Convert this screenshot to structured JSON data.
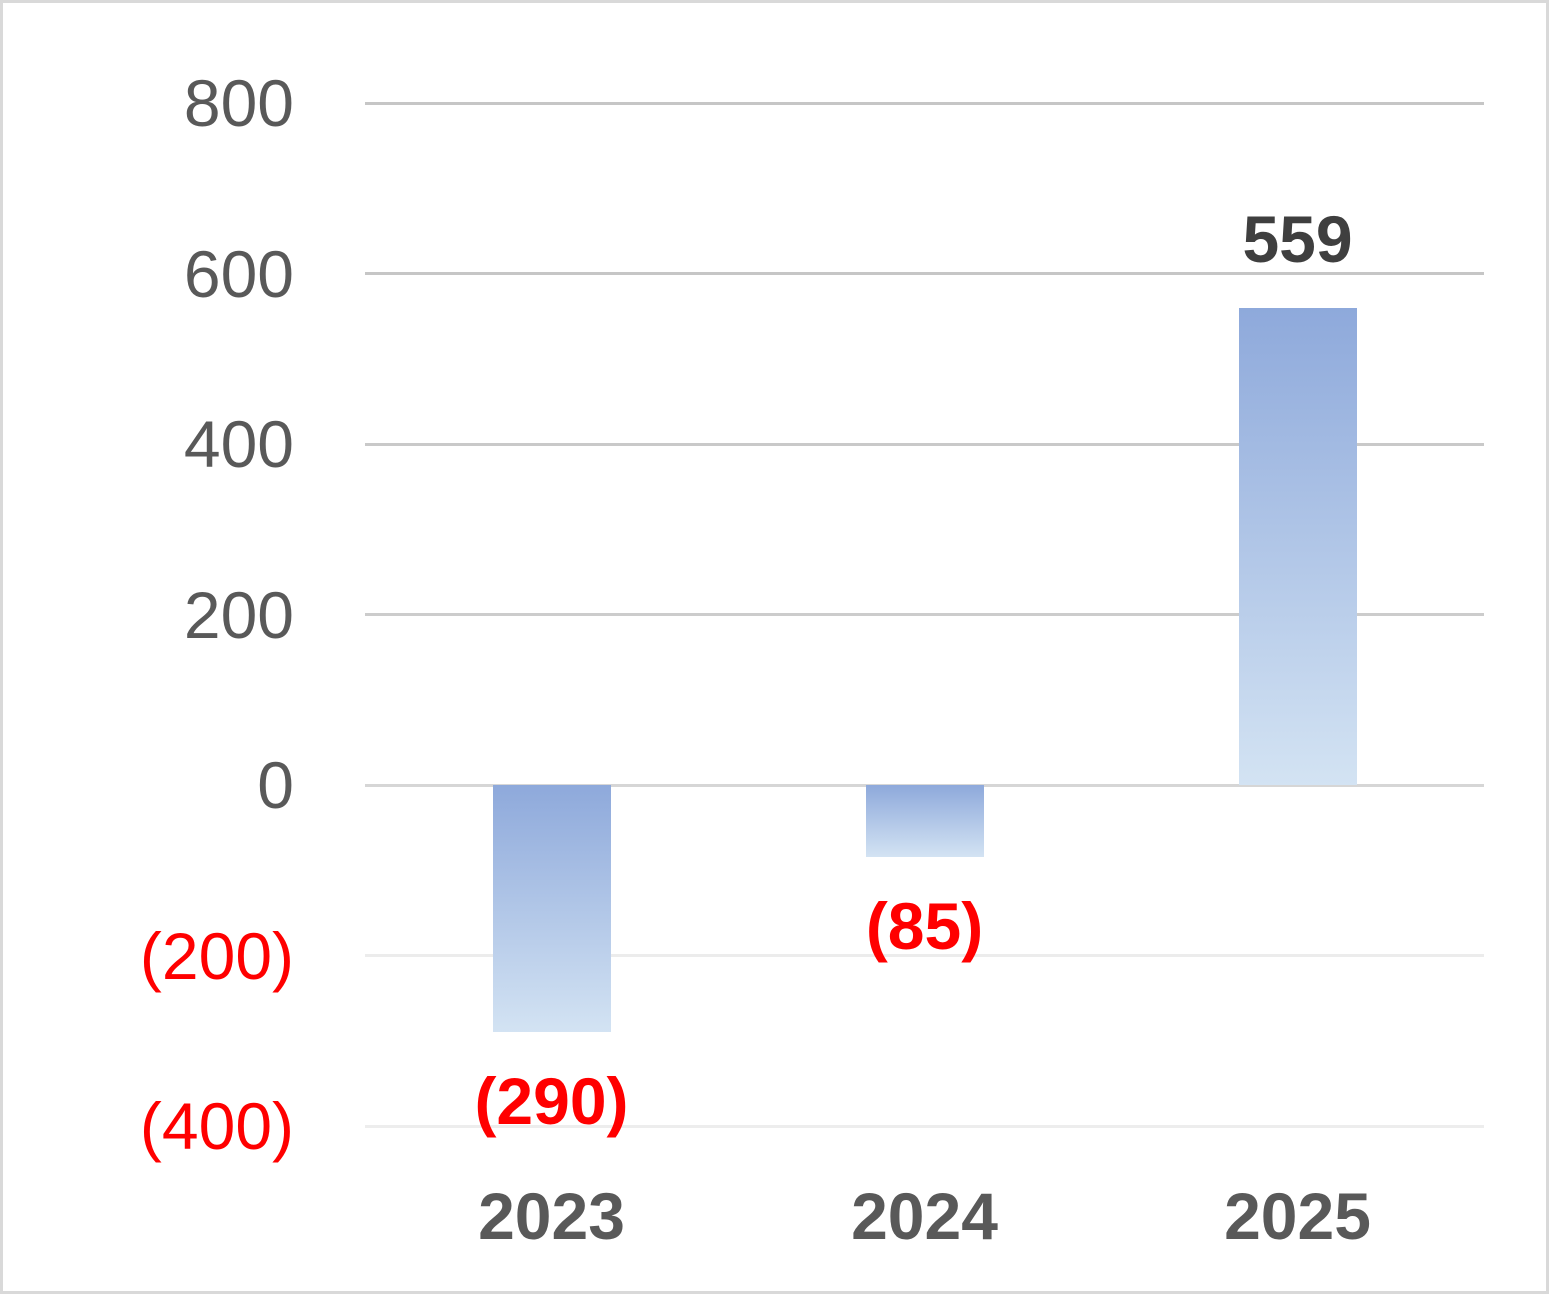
{
  "chart_data": {
    "type": "bar",
    "title": "",
    "xlabel": "",
    "ylabel": "",
    "legend": "none",
    "grid": "horizontal",
    "categories": [
      "2023",
      "2024",
      "2025"
    ],
    "values": [
      -290,
      -85,
      559
    ],
    "data_labels": [
      "(290)",
      "(85)",
      "559"
    ],
    "ylim": [
      -400,
      800
    ],
    "yticks": [
      {
        "value": 800,
        "label": "800",
        "label_color": "#595959",
        "grid_color": "#c6c6c6"
      },
      {
        "value": 600,
        "label": "600",
        "label_color": "#595959",
        "grid_color": "#c6c6c6"
      },
      {
        "value": 400,
        "label": "400",
        "label_color": "#595959",
        "grid_color": "#c9c9c9"
      },
      {
        "value": 200,
        "label": "200",
        "label_color": "#595959",
        "grid_color": "#cccccc"
      },
      {
        "value": 0,
        "label": "0",
        "label_color": "#595959",
        "grid_color": "#d6d6d6"
      },
      {
        "value": -200,
        "label": "(200)",
        "label_color": "#ff0000",
        "grid_color": "#ececec"
      },
      {
        "value": -400,
        "label": "(400)",
        "label_color": "#ff0000",
        "grid_color": "#ededed"
      }
    ],
    "colors": {
      "bar_gradient_top": "#8ea9db",
      "bar_gradient_bottom": "#d3e3f3",
      "positive_data_label": "#3f3f3f",
      "negative_data_label": "#ff0000",
      "category_label": "#595959"
    }
  }
}
